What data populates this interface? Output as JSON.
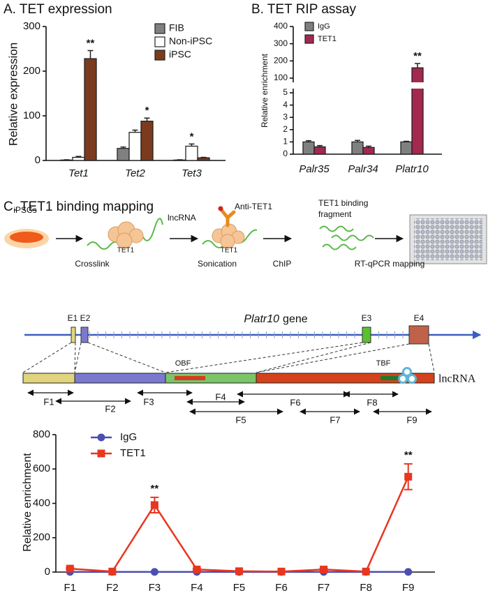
{
  "chart_data": [
    {
      "type": "bar",
      "title": "A. TET expression",
      "ylabel": "Relative expression",
      "categories": [
        "Tet1",
        "Tet2",
        "Tet3"
      ],
      "series": [
        {
          "name": "FIB",
          "color": "#808080",
          "values": [
            1,
            27,
            1
          ],
          "errors": [
            0.5,
            3,
            0.5
          ]
        },
        {
          "name": "Non-iPSC",
          "color": "#ffffff",
          "values": [
            7,
            63,
            32
          ],
          "errors": [
            2,
            5,
            5
          ],
          "significance": [
            null,
            null,
            "*"
          ]
        },
        {
          "name": "iPSC",
          "color": "#7b3b1e",
          "values": [
            228,
            88,
            6
          ],
          "errors": [
            18,
            7,
            1
          ],
          "significance": [
            "**",
            "*",
            null
          ]
        }
      ],
      "ylim": [
        0,
        300
      ],
      "yticks": [
        0,
        100,
        200,
        300
      ],
      "grid": false
    },
    {
      "type": "bar",
      "title": "B. TET RIP assay",
      "ylabel": "Relative enrichment",
      "categories": [
        "Palr35",
        "Palr34",
        "Platr10"
      ],
      "series": [
        {
          "name": "IgG",
          "color": "#808080",
          "values": [
            1,
            1,
            1
          ],
          "errors": [
            0.1,
            0.12,
            0.05
          ]
        },
        {
          "name": "TET1",
          "color": "#a3294f",
          "values": [
            0.6,
            0.55,
            160
          ],
          "errors": [
            0.1,
            0.1,
            25
          ],
          "significance": [
            null,
            null,
            "**"
          ]
        }
      ],
      "ylim": [
        0,
        400
      ],
      "ybreak": [
        5,
        100
      ],
      "yticks": [
        0,
        1,
        2,
        3,
        4,
        5,
        100,
        200,
        300,
        400
      ],
      "grid": false
    },
    {
      "type": "line",
      "ylabel": "Relative enrichment",
      "categories": [
        "F1",
        "F2",
        "F3",
        "F4",
        "F5",
        "F6",
        "F7",
        "F8",
        "F9"
      ],
      "series": [
        {
          "name": "IgG",
          "color": "#4b4fb0",
          "marker": "circle",
          "values": [
            1,
            1,
            1,
            1,
            1,
            1,
            1,
            1,
            1
          ]
        },
        {
          "name": "TET1",
          "color": "#e8361f",
          "marker": "square",
          "values": [
            20,
            3,
            390,
            15,
            5,
            3,
            15,
            3,
            555
          ],
          "errors": [
            5,
            1,
            45,
            5,
            1,
            1,
            6,
            1,
            75
          ],
          "significance": [
            null,
            null,
            "**",
            null,
            null,
            null,
            null,
            null,
            "**"
          ]
        }
      ],
      "ylim": [
        0,
        800
      ],
      "yticks": [
        0,
        200,
        400,
        600,
        800
      ],
      "grid": false
    }
  ],
  "diagram": {
    "title": "C. TET1 binding mapping",
    "workflow": {
      "cell": "iPSCs",
      "rna": "lncRNA",
      "antibody": "Anti-TET1",
      "protein": [
        "TET1",
        "TET1"
      ],
      "fragment": [
        "TET1 binding",
        "fragment"
      ],
      "steps": [
        "Crosslink",
        "Sonication",
        "ChIP",
        "RT-qPCR mapping"
      ]
    },
    "gene": {
      "name": "Platr10",
      "suffix": "gene",
      "exons": [
        "E1",
        "E2",
        "E3",
        "E4"
      ]
    },
    "transcript": {
      "regions": [
        "OBF",
        "TBF"
      ],
      "label": "lncRNA"
    },
    "fragments": [
      "F1",
      "F2",
      "F3",
      "F4",
      "F5",
      "F6",
      "F7",
      "F8",
      "F9"
    ]
  }
}
